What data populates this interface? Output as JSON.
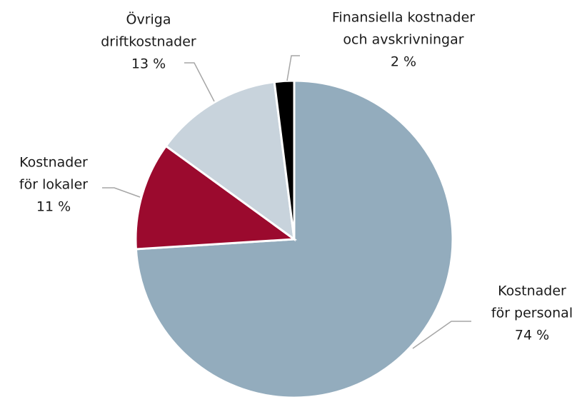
{
  "chart_data": {
    "type": "pie",
    "categories": [
      [
        "Kostnader",
        "för personal"
      ],
      [
        "Kostnader",
        "för lokaler"
      ],
      [
        "Övriga",
        "driftkostnader"
      ],
      [
        "Finansiella kostnader",
        "och avskrivningar"
      ]
    ],
    "values": [
      74,
      11,
      13,
      2
    ],
    "value_labels": [
      "74 %",
      "11 %",
      "13 %",
      "2 %"
    ],
    "colors": [
      "#93acbd",
      "#9b0a2e",
      "#c8d3dc",
      "#000000"
    ]
  }
}
